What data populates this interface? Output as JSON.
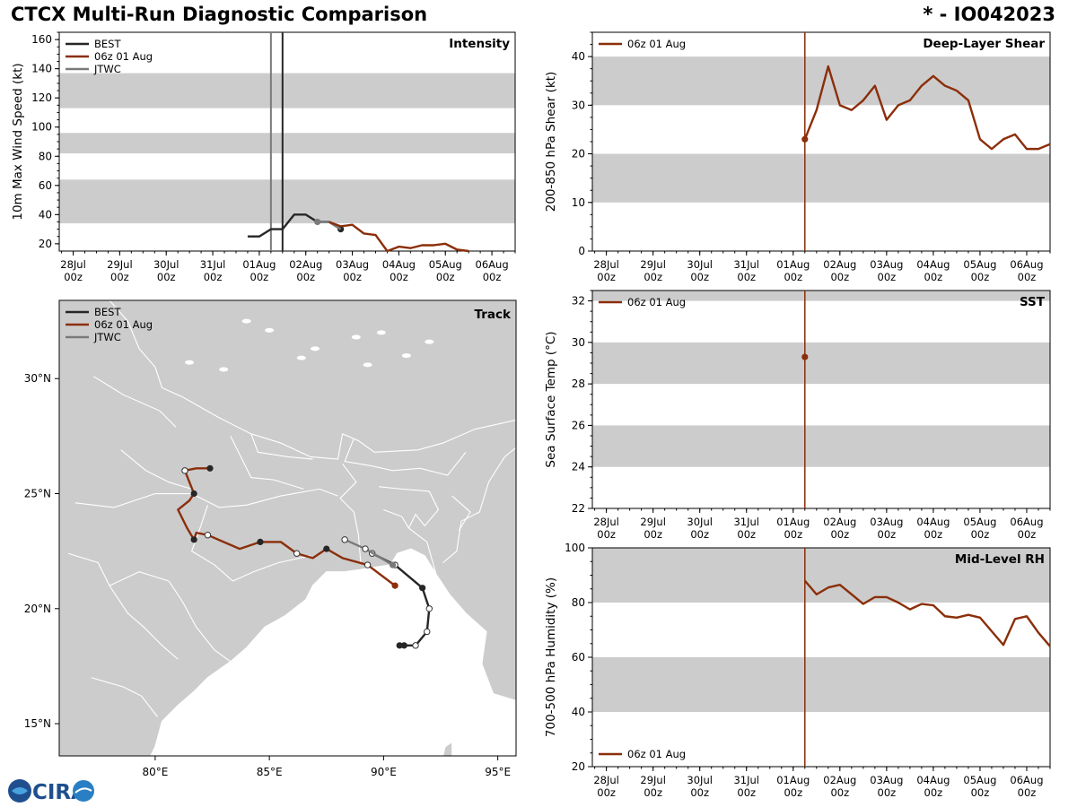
{
  "header": {
    "title": "CTCX Multi-Run Diagnostic Comparison",
    "storm_id": "* - IO042023"
  },
  "colors": {
    "best": "#262626",
    "run": "#8b2e0a",
    "jtwc": "#7a7a7a",
    "band": "#cccccc",
    "land": "#cccccc",
    "border": "#ffffff"
  },
  "logo": {
    "text": "CIRA",
    "icon": "cira-globe-logo"
  },
  "time_axis": {
    "ticks": [
      "28Jul\n00z",
      "29Jul\n00z",
      "30Jul\n00z",
      "31Jul\n00z",
      "01Aug\n00z",
      "02Aug\n00z",
      "03Aug\n00z",
      "04Aug\n00z",
      "05Aug\n00z",
      "06Aug\n00z"
    ],
    "range_days": [
      -0.3,
      9.5
    ],
    "init_day": 4.25
  },
  "chart_data": [
    {
      "id": "intensity",
      "type": "line",
      "title": "Intensity",
      "ylabel": "10m Max Wind Speed (kt)",
      "ylim": [
        15,
        165
      ],
      "yticks": [
        20,
        40,
        60,
        80,
        100,
        120,
        140,
        160
      ],
      "bands": [
        [
          34,
          64
        ],
        [
          82,
          96
        ],
        [
          113,
          137
        ]
      ],
      "vlines": [
        {
          "day": 4.25,
          "color": "jtwc"
        },
        {
          "day": 4.5,
          "color": "best"
        }
      ],
      "legend": [
        "BEST",
        "06z 01 Aug",
        "JTWC"
      ],
      "legend_position": "top-left",
      "series": [
        {
          "name": "BEST",
          "color": "best",
          "x": [
            3.75,
            4.0,
            4.25,
            4.5,
            4.75,
            5.0,
            5.25,
            5.5,
            5.75
          ],
          "y": [
            25,
            25,
            30,
            30,
            40,
            40,
            35,
            35,
            30
          ],
          "marker_last": true
        },
        {
          "name": "JTWC",
          "color": "jtwc",
          "x": [
            5.25,
            5.5,
            5.75
          ],
          "y": [
            35,
            35,
            30
          ],
          "marker_first": true
        },
        {
          "name": "06z 01 Aug",
          "color": "run",
          "x": [
            5.5,
            5.75,
            6.0,
            6.25,
            6.5,
            6.75,
            7.0,
            7.25,
            7.5,
            7.75,
            8.0,
            8.25,
            8.5
          ],
          "y": [
            35,
            32,
            33,
            27,
            26,
            15,
            18,
            17,
            19,
            19,
            20,
            16,
            15
          ]
        }
      ]
    },
    {
      "id": "shear",
      "type": "line",
      "title": "Deep-Layer Shear",
      "ylabel": "200-850 hPa Shear (kt)",
      "ylim": [
        0,
        45
      ],
      "yticks": [
        0,
        10,
        20,
        30,
        40
      ],
      "bands": [
        [
          10,
          20
        ],
        [
          30,
          40
        ]
      ],
      "legend": [
        "06z 01 Aug"
      ],
      "legend_position": "top-left",
      "series": [
        {
          "name": "06z 01 Aug",
          "color": "run",
          "x": [
            4.25,
            4.5,
            4.75,
            5.0,
            5.25,
            5.5,
            5.75,
            6.0,
            6.25,
            6.5,
            6.75,
            7.0,
            7.25,
            7.5,
            7.75,
            8.0,
            8.25,
            8.5,
            8.75,
            9.0,
            9.25,
            9.5
          ],
          "y": [
            23,
            29,
            38,
            30,
            29,
            31,
            34,
            27,
            30,
            31,
            34,
            36,
            34,
            33,
            31,
            23,
            21,
            23,
            24,
            21,
            21,
            22
          ],
          "marker_first": true
        }
      ]
    },
    {
      "id": "sst",
      "type": "line",
      "title": "SST",
      "ylabel": "Sea Surface Temp (°C)",
      "ylim": [
        22,
        32.5
      ],
      "yticks": [
        22,
        24,
        26,
        28,
        30,
        32
      ],
      "bands": [
        [
          24,
          26
        ],
        [
          28,
          30
        ],
        [
          32,
          32.5
        ]
      ],
      "legend": [
        "06z 01 Aug"
      ],
      "legend_position": "top-left",
      "series": [
        {
          "name": "06z 01 Aug",
          "color": "run",
          "x": [
            4.25
          ],
          "y": [
            29.3
          ],
          "marker_first": true
        }
      ]
    },
    {
      "id": "rh",
      "type": "line",
      "title": "Mid-Level RH",
      "ylabel": "700-500 hPa Humidity (%)",
      "ylim": [
        20,
        100
      ],
      "yticks": [
        20,
        40,
        60,
        80,
        100
      ],
      "bands": [
        [
          40,
          60
        ],
        [
          80,
          100
        ]
      ],
      "legend": [
        "06z 01 Aug"
      ],
      "legend_position": "bottom-left",
      "series": [
        {
          "name": "06z 01 Aug",
          "color": "run",
          "x": [
            4.25,
            4.5,
            4.75,
            5.0,
            5.25,
            5.5,
            5.75,
            6.0,
            6.25,
            6.5,
            6.75,
            7.0,
            7.25,
            7.5,
            7.75,
            8.0,
            8.25,
            8.5,
            8.75,
            9.0,
            9.25,
            9.5
          ],
          "y": [
            88,
            83,
            85.5,
            86.5,
            83,
            79.5,
            82,
            82,
            80,
            77.5,
            79.5,
            79,
            75,
            74.5,
            75.5,
            74.5,
            69.5,
            64.5,
            74,
            75,
            69,
            64
          ]
        }
      ]
    },
    {
      "id": "track",
      "type": "scatter",
      "title": "Track",
      "legend": [
        "BEST",
        "06z 01 Aug",
        "JTWC"
      ],
      "legend_position": "top-left",
      "lon_range": [
        75.8,
        95.8
      ],
      "lat_range": [
        13.6,
        33.4
      ],
      "lon_ticks": [
        80,
        85,
        90,
        95
      ],
      "lon_tick_labels": [
        "80°E",
        "85°E",
        "90°E",
        "95°E"
      ],
      "lat_ticks": [
        15,
        20,
        25,
        30
      ],
      "lat_tick_labels": [
        "15°N",
        "20°N",
        "25°N",
        "30°N"
      ],
      "series": [
        {
          "name": "BEST",
          "color": "best",
          "points": [
            [
              90.9,
              18.4
            ],
            [
              90.7,
              18.4
            ],
            [
              91.4,
              18.4
            ],
            [
              91.9,
              19.0
            ],
            [
              92.0,
              20.0
            ],
            [
              91.7,
              20.9
            ],
            [
              90.5,
              21.9
            ],
            [
              89.5,
              22.4
            ]
          ],
          "filled": [
            true,
            true,
            false,
            false,
            false,
            true,
            false,
            false
          ]
        },
        {
          "name": "JTWC",
          "color": "jtwc",
          "points": [
            [
              90.4,
              21.9
            ],
            [
              89.2,
              22.6
            ],
            [
              88.3,
              23.0
            ]
          ],
          "filled": [
            true,
            false,
            false
          ]
        },
        {
          "name": "06z 01 Aug",
          "color": "run",
          "points": [
            [
              90.5,
              21.0
            ],
            [
              89.3,
              21.9
            ],
            [
              88.2,
              22.2
            ],
            [
              87.5,
              22.6
            ],
            [
              86.9,
              22.2
            ],
            [
              86.2,
              22.4
            ],
            [
              85.5,
              22.9
            ],
            [
              84.6,
              22.9
            ],
            [
              83.7,
              22.6
            ],
            [
              82.3,
              23.2
            ],
            [
              81.8,
              23.3
            ],
            [
              81.7,
              23.0
            ],
            [
              81.4,
              23.5
            ],
            [
              81.0,
              24.3
            ],
            [
              81.5,
              24.7
            ],
            [
              81.7,
              25.0
            ],
            [
              81.5,
              25.5
            ],
            [
              81.3,
              26.0
            ],
            [
              81.8,
              26.1
            ],
            [
              82.4,
              26.1
            ]
          ],
          "filled": [
            true,
            false,
            false,
            true,
            false,
            false,
            false,
            true,
            false,
            false,
            false,
            true,
            false,
            false,
            false,
            true,
            false,
            false,
            false,
            true
          ],
          "hollow_marker_indices": [
            1,
            5,
            9,
            17
          ]
        }
      ],
      "labels": [
        "Track"
      ]
    }
  ]
}
